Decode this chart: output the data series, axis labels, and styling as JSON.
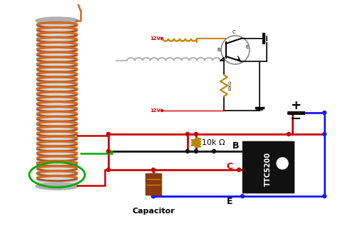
{
  "bg_color": "#ffffff",
  "red_wire": "#cc0000",
  "blue_wire": "#1a1aff",
  "black_wire": "#111111",
  "green_wire": "#00aa00",
  "orange_ind": "#cc8800",
  "resistor_color": "#b8860b",
  "gray_spring": "#aaaaaa",
  "transistor_bg": "#111111",
  "capacitor_color": "#8b3a0a",
  "label_B": "B",
  "label_C": "C",
  "label_E": "E",
  "label_resistor": "10k Ω",
  "label_transistor": "TTC5200",
  "label_capacitor": "Capacitor",
  "label_plus": "+",
  "label_12v": "12V",
  "coil_front": "#d2691e",
  "coil_back": "#a0522d",
  "cyl_color": "#d8d8d8",
  "cyl_cap": "#b0b0b0"
}
